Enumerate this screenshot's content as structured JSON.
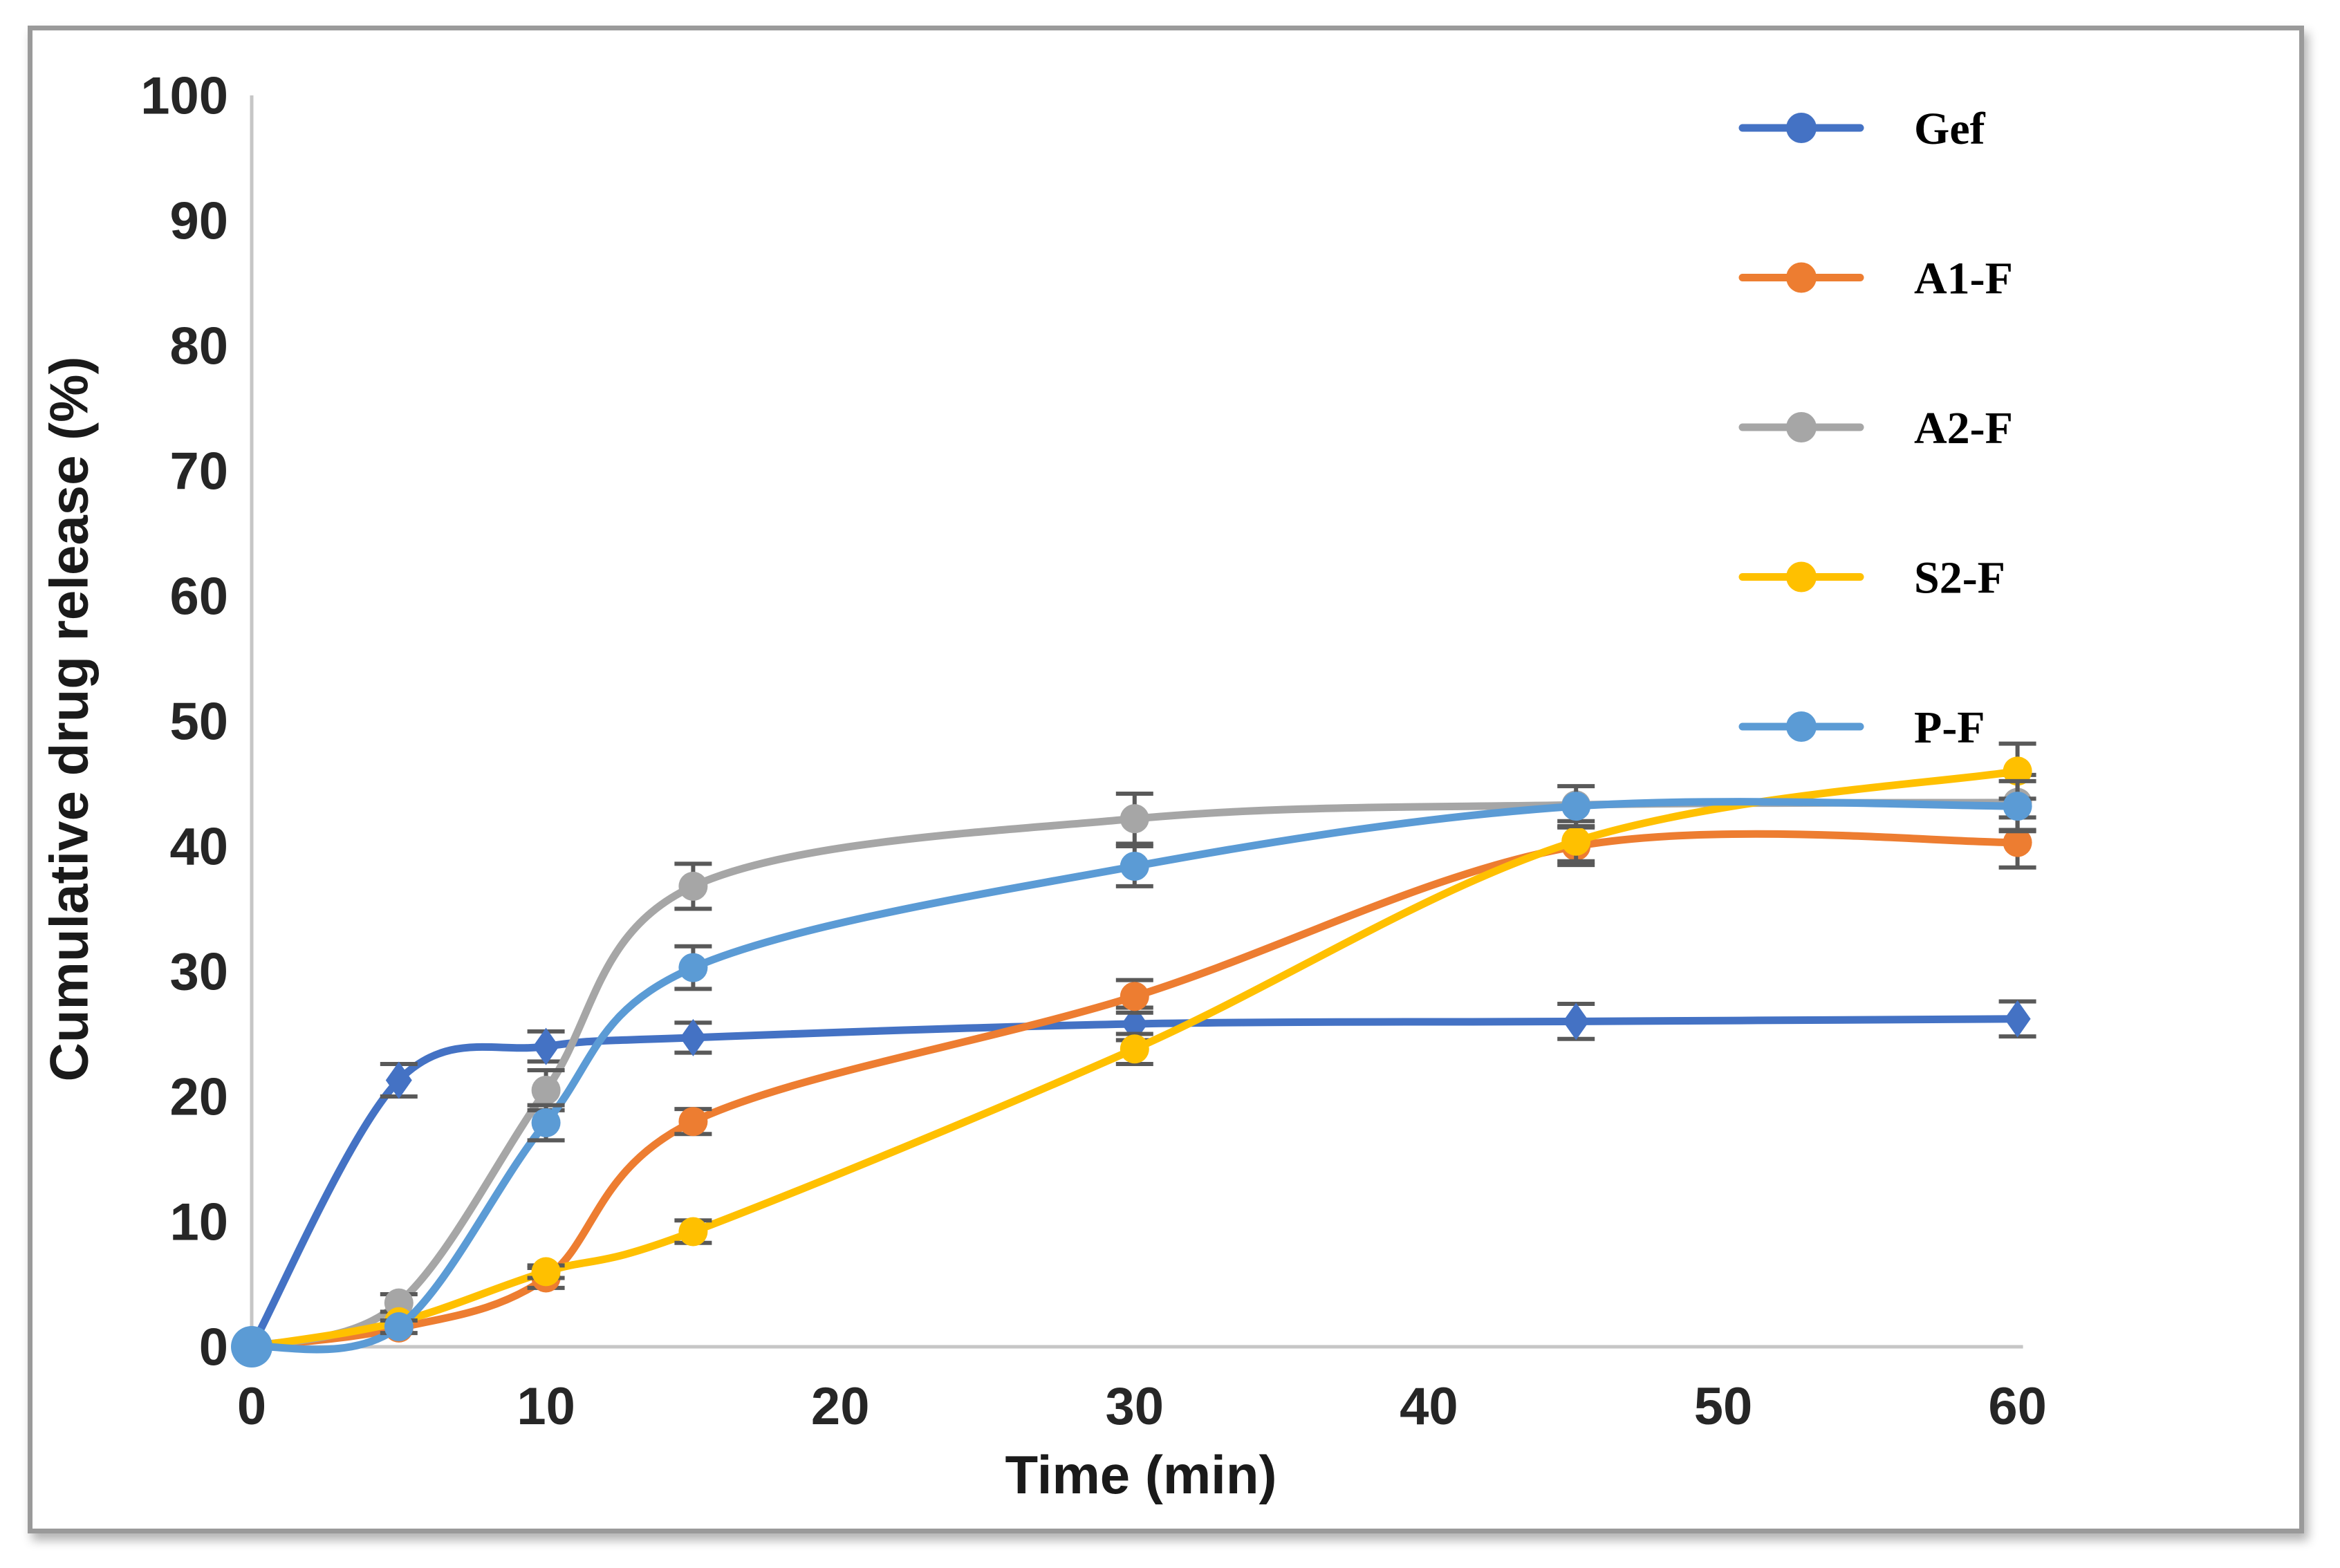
{
  "figure": {
    "background": "#FFFFFF",
    "border_color": "#9A9A9A",
    "axis_line_color": "#C6C6C6",
    "error_bar_color": "#595959",
    "tick_label_color": "#262626"
  },
  "chart_data": {
    "type": "line",
    "title": "",
    "xlabel": "Time (min)",
    "ylabel": "Cumulative drug release (%)",
    "x": [
      0,
      5,
      10,
      15,
      30,
      45,
      60
    ],
    "xlim": [
      0,
      60
    ],
    "ylim": [
      0,
      100
    ],
    "x_ticks": [
      0,
      10,
      20,
      30,
      40,
      50,
      60
    ],
    "y_ticks": [
      0,
      10,
      20,
      30,
      40,
      50,
      60,
      70,
      80,
      90,
      100
    ],
    "grid": false,
    "legend_position": "upper right",
    "smooth_lines": true,
    "error_bars": true,
    "series": [
      {
        "name": "Gef",
        "color": "#4472C4",
        "marker": "diamond",
        "values": [
          0,
          21.3,
          24.0,
          24.7,
          25.8,
          26.0,
          26.2
        ],
        "errors": [
          0,
          1.3,
          1.2,
          1.2,
          1.3,
          1.4,
          1.4
        ]
      },
      {
        "name": "A1-F",
        "color": "#ED7D31",
        "marker": "circle",
        "values": [
          0,
          1.5,
          5.5,
          18.0,
          28.0,
          40.0,
          40.3
        ],
        "errors": [
          0,
          0,
          0.8,
          1.0,
          1.3,
          1.5,
          2.0
        ]
      },
      {
        "name": "A2-F",
        "color": "#A6A6A6",
        "marker": "circle",
        "values": [
          0,
          3.5,
          20.5,
          36.8,
          42.2,
          43.3,
          43.5
        ],
        "errors": [
          0,
          0.7,
          1.6,
          1.8,
          2.0,
          0,
          2.2
        ]
      },
      {
        "name": "S2-F",
        "color": "#FFC000",
        "marker": "circle",
        "values": [
          0,
          2.0,
          6.0,
          9.2,
          23.8,
          40.4,
          46.0
        ],
        "errors": [
          0,
          0,
          0.5,
          0.9,
          1.2,
          1.6,
          2.2
        ]
      },
      {
        "name": "P-F",
        "color": "#5B9BD5",
        "marker": "circle",
        "values": [
          0,
          1.6,
          17.9,
          30.3,
          38.4,
          43.2,
          43.2
        ],
        "errors": [
          0,
          0.5,
          1.4,
          1.7,
          1.6,
          1.6,
          2.0
        ]
      }
    ]
  }
}
